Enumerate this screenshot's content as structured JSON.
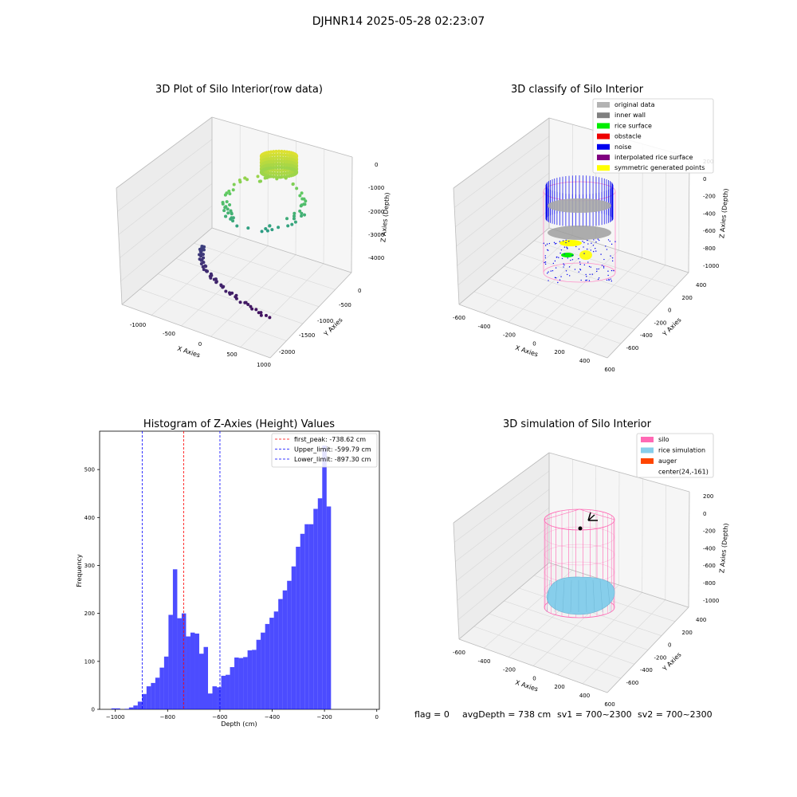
{
  "figure": {
    "suptitle": "DJHNR14 2025-05-28 02:23:07",
    "footer": {
      "flag": "flag = 0",
      "avg_depth": "avgDepth = 738 cm",
      "sv1": "sv1 = 700~2300",
      "sv2": "sv2 = 700~2300"
    }
  },
  "panels": {
    "raw": {
      "title": "3D Plot of Silo Interior(row data)",
      "xlabel": "X Axies",
      "ylabel": "Y Axies",
      "zlabel": "Z Axies (Depth)",
      "xticks": [
        "-1000",
        "-500",
        "0",
        "500",
        "1000"
      ],
      "yticks": [
        "0",
        "-500",
        "-1000",
        "-1500",
        "-2000"
      ],
      "zticks": [
        "0",
        "-1000",
        "-2000",
        "-3000",
        "-4000"
      ]
    },
    "classify": {
      "title": "3D classify of Silo Interior",
      "xlabel": "X Axies",
      "ylabel": "Y Axies",
      "zlabel": "Z Axies (Depth)",
      "xticks": [
        "-600",
        "-400",
        "-200",
        "0",
        "200",
        "400",
        "600"
      ],
      "yticks": [
        "400",
        "200",
        "0",
        "-200",
        "-400",
        "-600"
      ],
      "zticks": [
        "200",
        "0",
        "-200",
        "-400",
        "-600",
        "-800",
        "-1000"
      ],
      "legend": [
        {
          "label": "original data",
          "color": "#b3b3b3"
        },
        {
          "label": "inner wall",
          "color": "#808080"
        },
        {
          "label": "rice surface",
          "color": "#00ee00"
        },
        {
          "label": "obstacle",
          "color": "#ee0000"
        },
        {
          "label": "noise",
          "color": "#0000ee"
        },
        {
          "label": "interpolated rice surface",
          "color": "#800080"
        },
        {
          "label": "symmetric generated points",
          "color": "#ffff00"
        }
      ]
    },
    "simulation": {
      "title": "3D simulation of Silo Interior",
      "xlabel": "X Axies",
      "ylabel": "Y Axies",
      "zlabel": "Z Axies (Depth)",
      "xticks": [
        "-600",
        "-400",
        "-200",
        "0",
        "200",
        "400",
        "600"
      ],
      "yticks": [
        "400",
        "200",
        "0",
        "-200",
        "-400",
        "-600"
      ],
      "zticks": [
        "200",
        "0",
        "-200",
        "-400",
        "-600",
        "-800",
        "-1000"
      ],
      "legend": [
        {
          "label": "silo",
          "color": "#ff69b4"
        },
        {
          "label": "rice simulation",
          "color": "#87ceeb"
        },
        {
          "label": "auger",
          "color": "#ff4500"
        },
        {
          "label": "center(24,-161)",
          "color": ""
        }
      ]
    }
  },
  "chart_data": {
    "type": "bar",
    "title": "Histogram of Z-Axies (Height) Values",
    "xlabel": "Depth (cm)",
    "ylabel": "Frequency",
    "xlim": [
      -1060,
      10
    ],
    "ylim": [
      0,
      580
    ],
    "bin_start": -1015,
    "bin_width": 16.8,
    "values": [
      2,
      2,
      0,
      1,
      4,
      8,
      16,
      32,
      48,
      55,
      66,
      87,
      110,
      197,
      292,
      190,
      200,
      152,
      160,
      158,
      116,
      130,
      33,
      48,
      46,
      70,
      72,
      88,
      108,
      107,
      109,
      123,
      124,
      145,
      160,
      178,
      191,
      204,
      230,
      248,
      268,
      298,
      339,
      366,
      386,
      386,
      418,
      440,
      550,
      423
    ],
    "bar_color": "#0000ff",
    "xticks": [
      -1000,
      -800,
      -600,
      -400,
      -200,
      0
    ],
    "yticks": [
      0,
      100,
      200,
      300,
      400,
      500
    ],
    "lines": [
      {
        "label": "first_peak: -738.62 cm",
        "x": -738.62,
        "color": "#ff0000"
      },
      {
        "label": "Upper_limit: -599.79 cm",
        "x": -599.79,
        "color": "#0000ff"
      },
      {
        "label": "Lower_limit: -897.30 cm",
        "x": -897.3,
        "color": "#0000ff"
      }
    ]
  }
}
